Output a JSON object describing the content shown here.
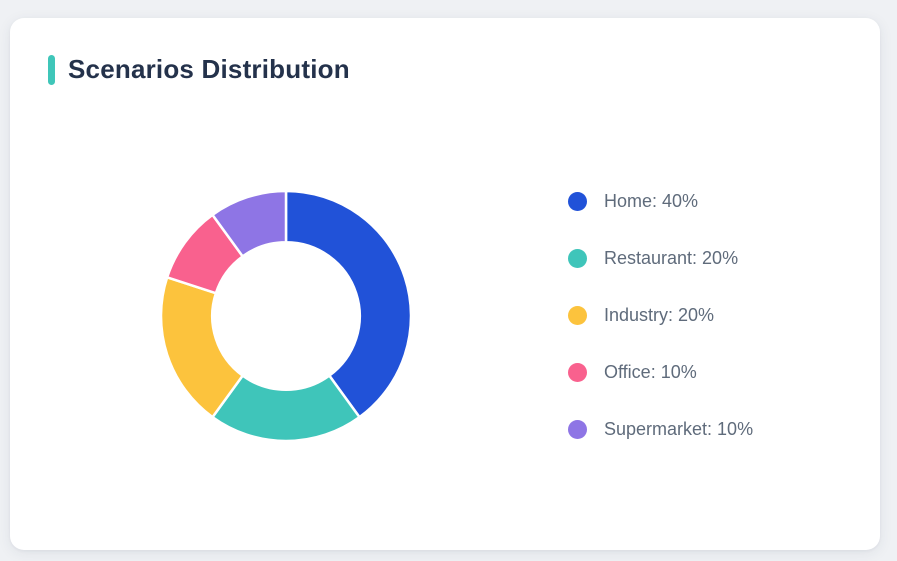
{
  "page": {
    "background_color": "#eff1f4"
  },
  "card": {
    "title": "Scenarios Distribution",
    "accent_color": "#3fc6b9",
    "title_color": "#24324b",
    "background_color": "#ffffff"
  },
  "chart_data": {
    "type": "pie",
    "variant": "donut",
    "title": "Scenarios Distribution",
    "categories": [
      "Home",
      "Restaurant",
      "Industry",
      "Office",
      "Supermarket"
    ],
    "values": [
      40,
      20,
      20,
      10,
      10
    ],
    "unit": "%",
    "colors": [
      "#2152d8",
      "#3fc5ba",
      "#fcc33d",
      "#f9618e",
      "#8e75e5"
    ],
    "legend_items": [
      "Home: 40%",
      "Restaurant: 20%",
      "Industry: 20%",
      "Office: 10%",
      "Supermarket: 10%"
    ],
    "legend_position": "right",
    "legend_text_color": "#5f6b7b",
    "start_angle_deg": 0,
    "direction": "clockwise",
    "inner_radius_ratio": 0.59,
    "segment_border_color": "#ffffff",
    "segment_border_width": 2.5
  }
}
